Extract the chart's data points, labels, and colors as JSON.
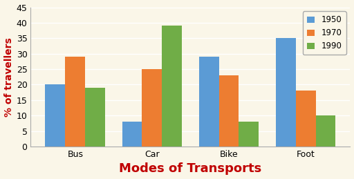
{
  "categories": [
    "Bus",
    "Car",
    "Bike",
    "Foot"
  ],
  "series": {
    "1950": [
      20,
      8,
      29,
      35
    ],
    "1970": [
      29,
      25,
      23,
      18
    ],
    "1990": [
      19,
      39,
      8,
      10
    ]
  },
  "bar_colors": {
    "1950": "#5B9BD5",
    "1970": "#ED7D31",
    "1990": "#70AD47"
  },
  "xlabel": "Modes of Transports",
  "ylabel": "% of travellers",
  "xlabel_color": "#C00000",
  "ylabel_color": "#C00000",
  "ylim": [
    0,
    45
  ],
  "yticks": [
    0,
    5,
    10,
    15,
    20,
    25,
    30,
    35,
    40,
    45
  ],
  "background_color": "#FAF6E8",
  "plot_background": "#FAF6E8",
  "grid_color": "#FFFFFF",
  "legend_labels": [
    "1950",
    "1970",
    "1990"
  ],
  "xlabel_fontsize": 13,
  "ylabel_fontsize": 10,
  "tick_fontsize": 9,
  "bar_width": 0.26
}
